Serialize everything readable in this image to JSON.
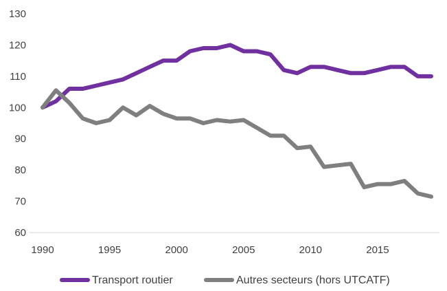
{
  "chart_data": {
    "type": "line",
    "title": "",
    "xlabel": "",
    "ylabel": "",
    "xlim": [
      1990,
      2019
    ],
    "ylim": [
      60,
      130
    ],
    "x_ticks": [
      1990,
      1995,
      2000,
      2005,
      2010,
      2015
    ],
    "y_ticks": [
      60,
      70,
      80,
      90,
      100,
      110,
      120,
      130
    ],
    "grid": false,
    "legend_position": "bottom",
    "x": [
      1990,
      1991,
      1992,
      1993,
      1994,
      1995,
      1996,
      1997,
      1998,
      1999,
      2000,
      2001,
      2002,
      2003,
      2004,
      2005,
      2006,
      2007,
      2008,
      2009,
      2010,
      2011,
      2012,
      2013,
      2014,
      2015,
      2016,
      2017,
      2018,
      2019
    ],
    "series": [
      {
        "name": "Transport routier",
        "color": "#7030a0",
        "values": [
          100,
          102,
          106,
          106,
          107,
          108,
          109,
          111,
          113,
          115,
          115,
          118,
          119,
          119,
          120,
          118,
          118,
          117,
          112,
          111,
          113,
          113,
          112,
          111,
          111,
          112,
          113,
          113,
          110,
          110
        ]
      },
      {
        "name": "Autres secteurs (hors UTCATF)",
        "color": "#7f7f7f",
        "values": [
          100,
          105.5,
          101.5,
          96.5,
          95,
          96,
          100,
          97.5,
          100.5,
          98,
          96.5,
          96.5,
          95,
          96,
          95.5,
          96,
          93.5,
          91,
          91,
          87,
          87.5,
          81,
          81.5,
          82,
          74.5,
          75.5,
          75.5,
          76.5,
          72.5,
          71.5
        ]
      }
    ]
  }
}
